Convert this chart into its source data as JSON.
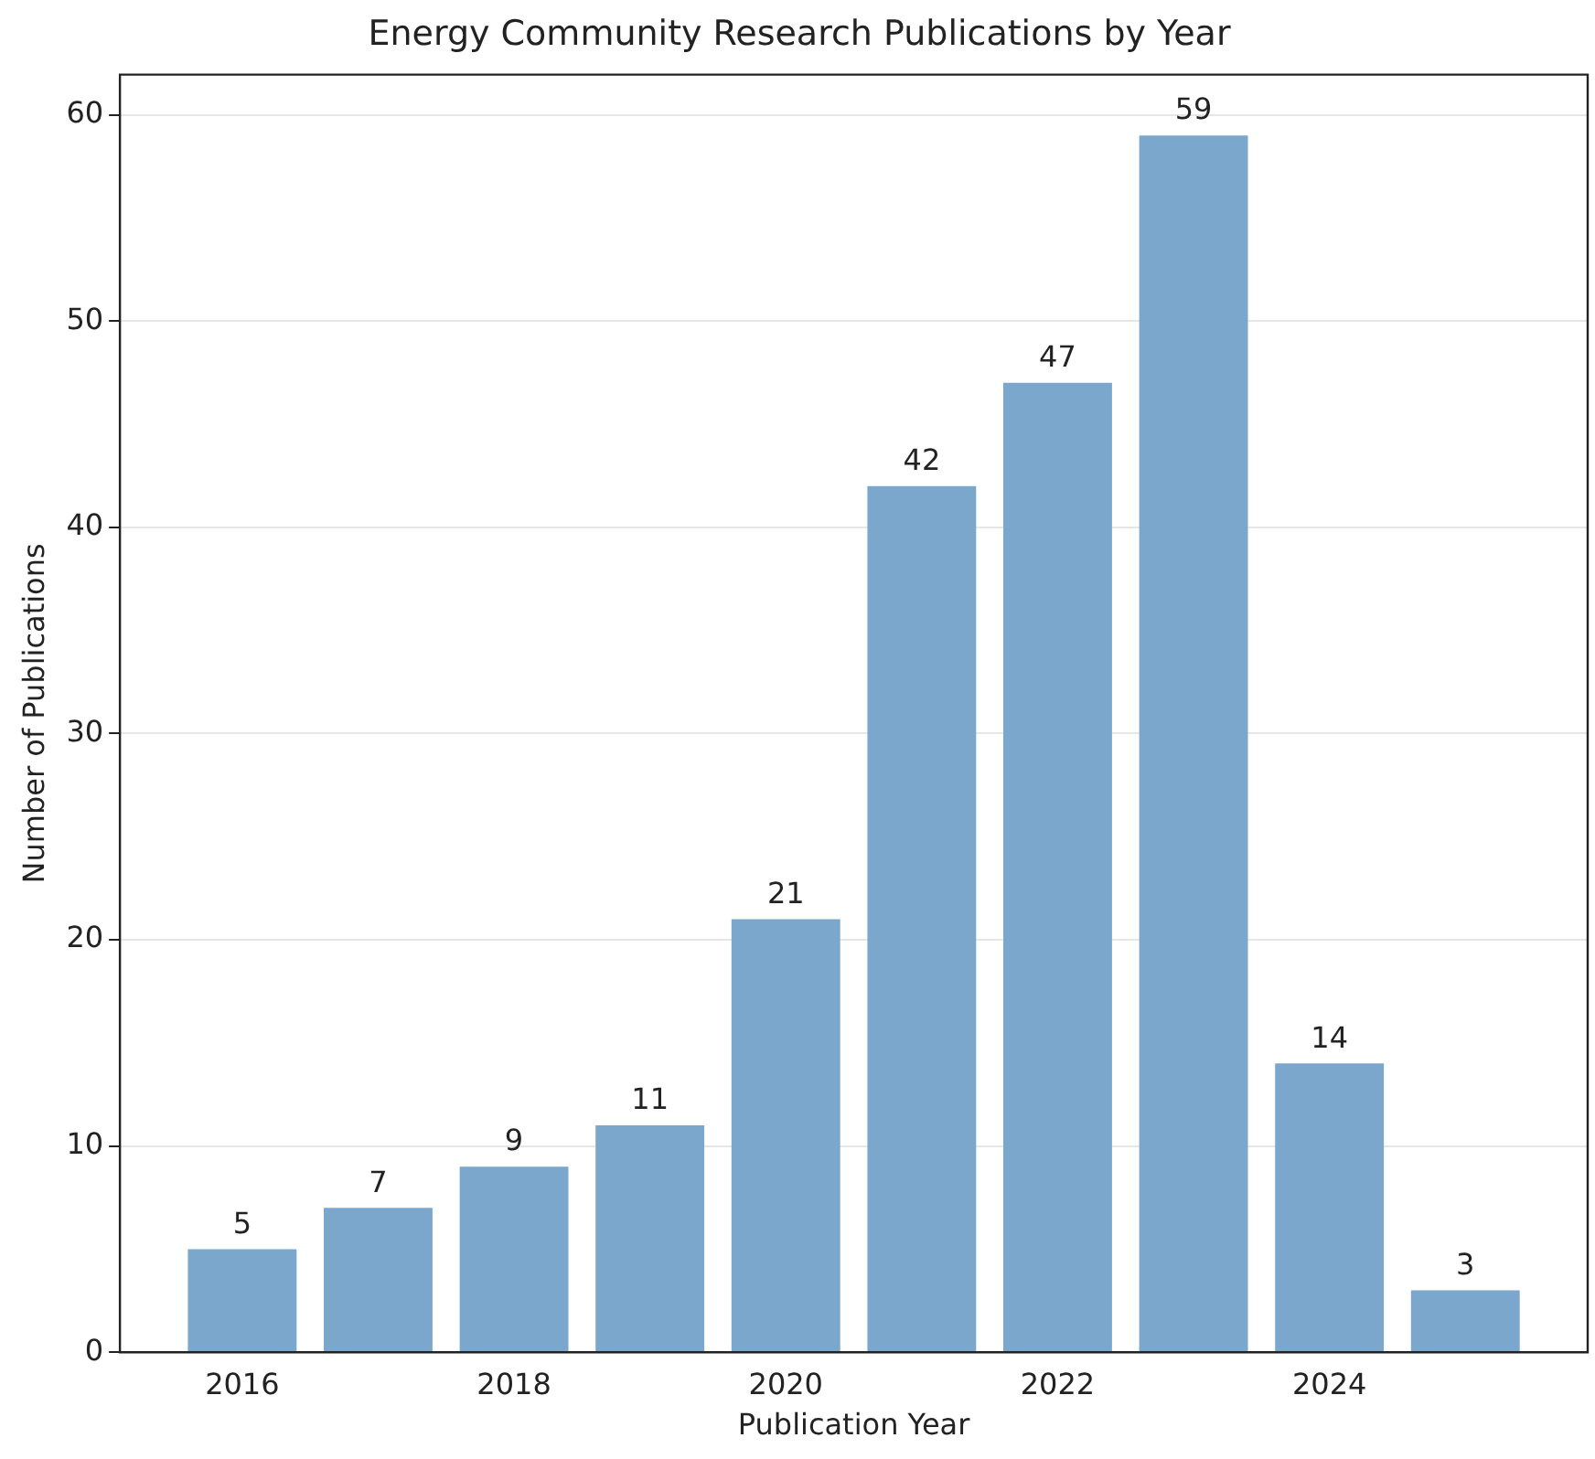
{
  "chart_data": {
    "type": "bar",
    "title": "Energy Community Research Publications by Year",
    "xlabel": "Publication Year",
    "ylabel": "Number of Publications",
    "x": [
      2016,
      2017,
      2018,
      2019,
      2020,
      2021,
      2022,
      2023,
      2024,
      2025
    ],
    "values": [
      5,
      7,
      9,
      11,
      21,
      42,
      47,
      59,
      14,
      3
    ],
    "color": "#7ba7cc",
    "xlim": [
      2015.1,
      2025.9
    ],
    "xticks": [
      2016,
      2018,
      2020,
      2022,
      2024
    ],
    "ylim": [
      0,
      61.95
    ],
    "yticks": [
      0,
      10,
      20,
      30,
      40,
      50,
      60
    ],
    "grid": "y",
    "data_labels": true,
    "legend": false
  }
}
